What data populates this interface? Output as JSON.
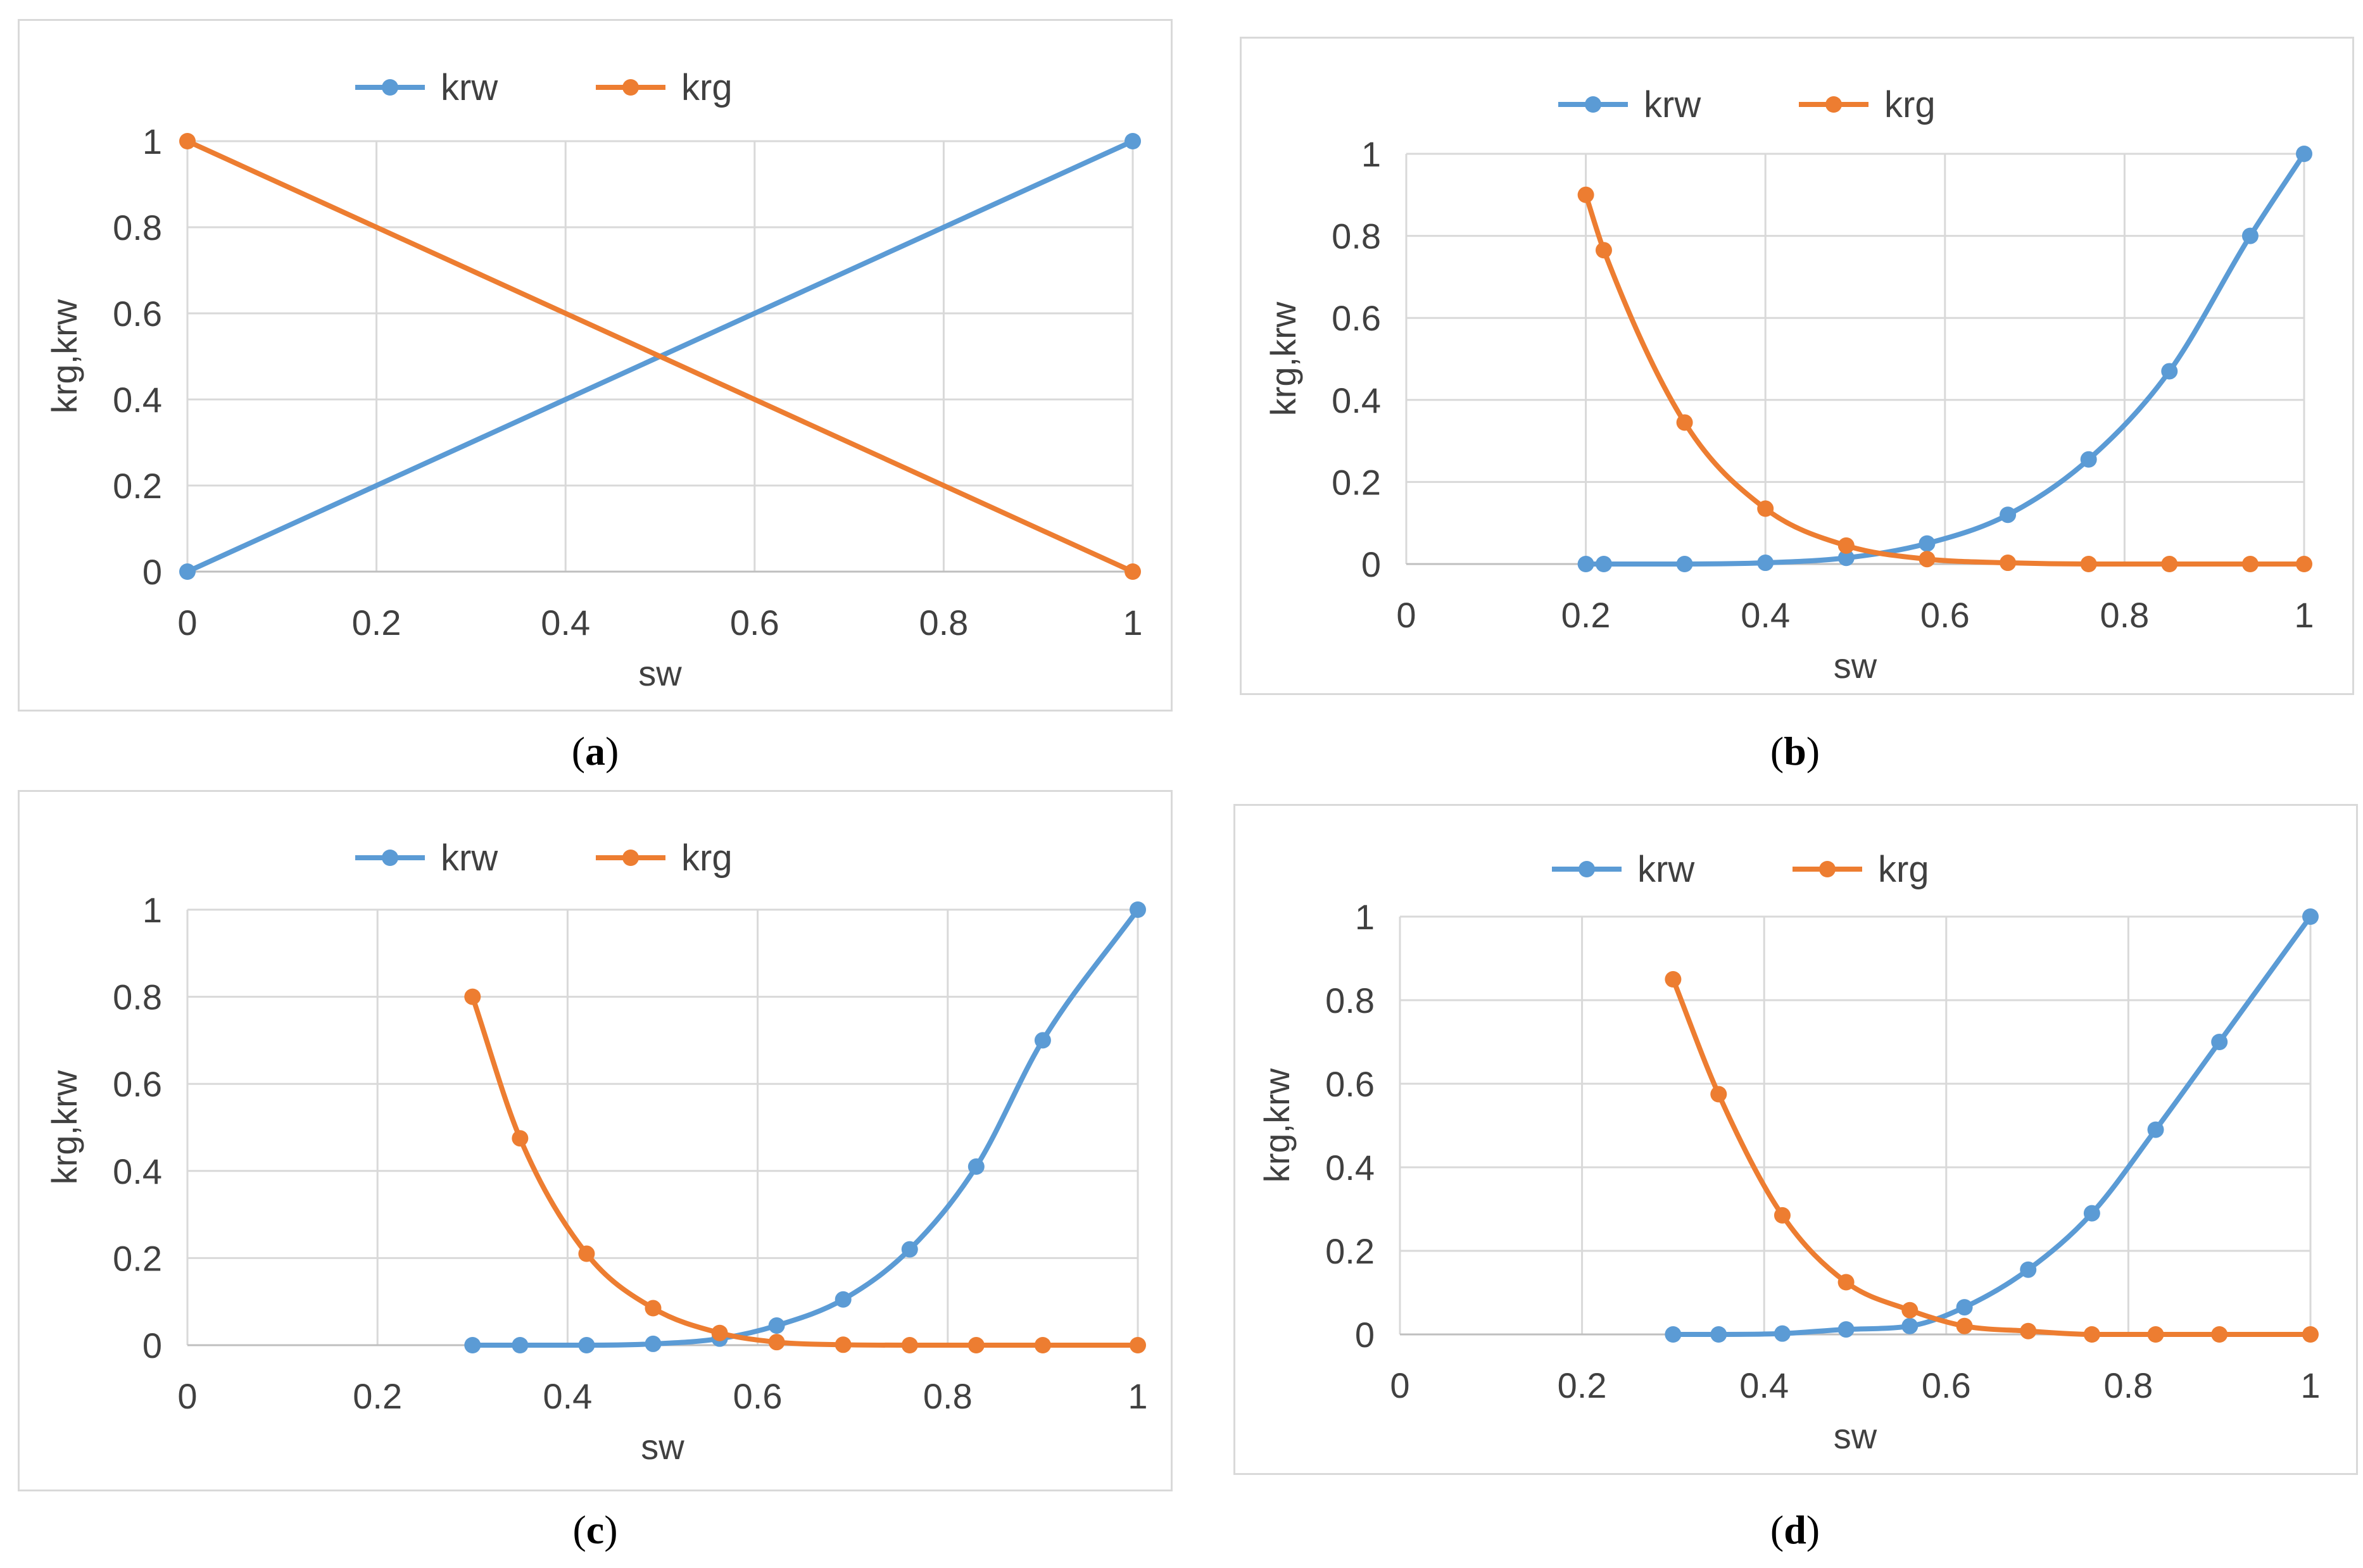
{
  "figure": {
    "colors": {
      "krw": "#5b9bd5",
      "krg": "#ed7d31",
      "grid": "#d9d9d9",
      "text": "#404040"
    }
  },
  "chart_data": [
    {
      "id": "a",
      "caption_letter": "a",
      "type": "line",
      "xlabel": "sw",
      "ylabel": "krg,krw",
      "xlim": [
        0,
        1
      ],
      "ylim": [
        0,
        1
      ],
      "xticks": [
        0,
        0.2,
        0.4,
        0.6,
        0.8,
        1
      ],
      "xtick_labels": [
        "0",
        "0.2",
        "0.4",
        "0.6",
        "0.8",
        "1"
      ],
      "yticks": [
        0,
        0.2,
        0.4,
        0.6,
        0.8,
        1
      ],
      "ytick_labels": [
        "0",
        "0.2",
        "0.4",
        "0.6",
        "0.8",
        "1"
      ],
      "legend": "top",
      "series": [
        {
          "name": "krw",
          "x": [
            0,
            1
          ],
          "y": [
            0,
            1
          ]
        },
        {
          "name": "krg",
          "x": [
            0,
            1
          ],
          "y": [
            1,
            0
          ]
        }
      ]
    },
    {
      "id": "b",
      "caption_letter": "b",
      "type": "line",
      "xlabel": "sw",
      "ylabel": "krg,krw",
      "xlim": [
        0,
        1
      ],
      "ylim": [
        0,
        1
      ],
      "xticks": [
        0,
        0.2,
        0.4,
        0.6,
        0.8,
        1
      ],
      "xtick_labels": [
        "0",
        "0.2",
        "0.4",
        "0.6",
        "0.8",
        "1"
      ],
      "yticks": [
        0,
        0.2,
        0.4,
        0.6,
        0.8,
        1
      ],
      "ytick_labels": [
        "0",
        "0.2",
        "0.4",
        "0.6",
        "0.8",
        "1"
      ],
      "legend": "top",
      "series": [
        {
          "name": "krw",
          "x": [
            0.2,
            0.22,
            0.31,
            0.4,
            0.49,
            0.58,
            0.67,
            0.76,
            0.85,
            0.94,
            1.0
          ],
          "y": [
            0,
            0,
            0,
            0.003,
            0.015,
            0.05,
            0.12,
            0.255,
            0.47,
            0.8,
            1.0
          ]
        },
        {
          "name": "krg",
          "x": [
            0.2,
            0.22,
            0.31,
            0.4,
            0.49,
            0.58,
            0.67,
            0.76,
            0.85,
            0.94,
            1.0
          ],
          "y": [
            0.9,
            0.765,
            0.345,
            0.135,
            0.045,
            0.012,
            0.003,
            0,
            0,
            0,
            0
          ]
        }
      ]
    },
    {
      "id": "c",
      "caption_letter": "c",
      "type": "line",
      "xlabel": "sw",
      "ylabel": "krg,krw",
      "xlim": [
        0,
        1
      ],
      "ylim": [
        0,
        1
      ],
      "xticks": [
        0,
        0.2,
        0.4,
        0.6,
        0.8,
        1
      ],
      "xtick_labels": [
        "0",
        "0.2",
        "0.4",
        "0.6",
        "0.8",
        "1"
      ],
      "yticks": [
        0,
        0.2,
        0.4,
        0.6,
        0.8,
        1
      ],
      "ytick_labels": [
        "0",
        "0.2",
        "0.4",
        "0.6",
        "0.8",
        "1"
      ],
      "legend": "top",
      "series": [
        {
          "name": "krw",
          "x": [
            0.3,
            0.35,
            0.42,
            0.49,
            0.56,
            0.62,
            0.69,
            0.76,
            0.83,
            0.9,
            1.0
          ],
          "y": [
            0,
            0,
            0,
            0.003,
            0.015,
            0.045,
            0.105,
            0.22,
            0.41,
            0.7,
            1.0
          ]
        },
        {
          "name": "krg",
          "x": [
            0.3,
            0.35,
            0.42,
            0.49,
            0.56,
            0.62,
            0.69,
            0.76,
            0.83,
            0.9,
            1.0
          ],
          "y": [
            0.8,
            0.475,
            0.21,
            0.085,
            0.028,
            0.007,
            0.001,
            0,
            0,
            0,
            0
          ]
        }
      ]
    },
    {
      "id": "d",
      "caption_letter": "d",
      "type": "line",
      "xlabel": "sw",
      "ylabel": "krg,krw",
      "xlim": [
        0,
        1
      ],
      "ylim": [
        0,
        1
      ],
      "xticks": [
        0,
        0.2,
        0.4,
        0.6,
        0.8,
        1
      ],
      "xtick_labels": [
        "0",
        "0.2",
        "0.4",
        "0.6",
        "0.8",
        "1"
      ],
      "yticks": [
        0,
        0.2,
        0.4,
        0.6,
        0.8,
        1
      ],
      "ytick_labels": [
        "0",
        "0.2",
        "0.4",
        "0.6",
        "0.8",
        "1"
      ],
      "legend": "top",
      "series": [
        {
          "name": "krw",
          "x": [
            0.3,
            0.35,
            0.42,
            0.49,
            0.56,
            0.62,
            0.69,
            0.76,
            0.83,
            0.9,
            1.0
          ],
          "y": [
            0,
            0,
            0.002,
            0.012,
            0.02,
            0.065,
            0.155,
            0.29,
            0.49,
            0.7,
            1.0
          ]
        },
        {
          "name": "krg",
          "x": [
            0.3,
            0.35,
            0.42,
            0.49,
            0.56,
            0.62,
            0.69,
            0.76,
            0.83,
            0.9,
            1.0
          ],
          "y": [
            0.85,
            0.575,
            0.285,
            0.125,
            0.058,
            0.02,
            0.008,
            0,
            0,
            0,
            0
          ]
        }
      ]
    }
  ]
}
